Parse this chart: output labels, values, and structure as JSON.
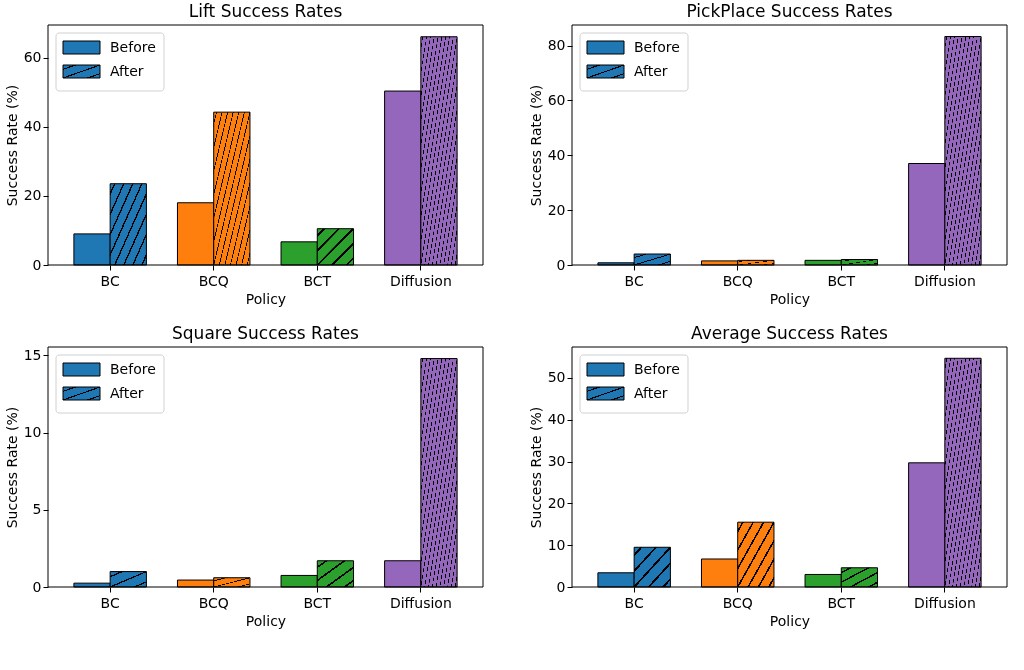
{
  "chart_data": [
    {
      "type": "bar",
      "title": "Lift Success Rates",
      "xlabel": "Policy",
      "ylabel": "Success Rate (%)",
      "categories": [
        "BC",
        "BCQ",
        "BCT",
        "Diffusion"
      ],
      "series": [
        {
          "name": "Before",
          "colors": [
            "#1f77b4",
            "#ff7f0e",
            "#2ca02c",
            "#9467bd"
          ],
          "values": [
            9.0,
            18.0,
            6.7,
            50.3
          ]
        },
        {
          "name": "After",
          "colors": [
            "#1f77b4",
            "#ff7f0e",
            "#2ca02c",
            "#9467bd"
          ],
          "values": [
            23.5,
            44.2,
            10.5,
            66.0
          ]
        }
      ],
      "ylim": [
        0,
        69.4
      ],
      "yticks": [
        0,
        20,
        40,
        60
      ],
      "legend": "top left",
      "grid": false
    },
    {
      "type": "bar",
      "title": "PickPlace Success Rates",
      "xlabel": "Policy",
      "ylabel": "Success Rate (%)",
      "categories": [
        "BC",
        "BCQ",
        "BCT",
        "Diffusion"
      ],
      "series": [
        {
          "name": "Before",
          "colors": [
            "#1f77b4",
            "#ff7f0e",
            "#2ca02c",
            "#9467bd"
          ],
          "values": [
            0.8,
            1.5,
            1.7,
            37.0
          ]
        },
        {
          "name": "After",
          "colors": [
            "#1f77b4",
            "#ff7f0e",
            "#2ca02c",
            "#9467bd"
          ],
          "values": [
            4.0,
            1.7,
            2.0,
            83.3
          ]
        }
      ],
      "ylim": [
        0,
        87.5
      ],
      "yticks": [
        0,
        20,
        40,
        60,
        80
      ],
      "legend": "top left",
      "grid": false
    },
    {
      "type": "bar",
      "title": "Square Success Rates",
      "xlabel": "Policy",
      "ylabel": "Success Rate (%)",
      "categories": [
        "BC",
        "BCQ",
        "BCT",
        "Diffusion"
      ],
      "series": [
        {
          "name": "Before",
          "colors": [
            "#1f77b4",
            "#ff7f0e",
            "#2ca02c",
            "#9467bd"
          ],
          "values": [
            0.25,
            0.45,
            0.75,
            1.7
          ]
        },
        {
          "name": "After",
          "colors": [
            "#1f77b4",
            "#ff7f0e",
            "#2ca02c",
            "#9467bd"
          ],
          "values": [
            1.0,
            0.6,
            1.7,
            14.8
          ]
        }
      ],
      "ylim": [
        0,
        15.55
      ],
      "yticks": [
        0,
        5,
        10,
        15
      ],
      "legend": "top left",
      "grid": false
    },
    {
      "type": "bar",
      "title": "Average Success Rates",
      "xlabel": "Policy",
      "ylabel": "Success Rate (%)",
      "categories": [
        "BC",
        "BCQ",
        "BCT",
        "Diffusion"
      ],
      "series": [
        {
          "name": "Before",
          "colors": [
            "#1f77b4",
            "#ff7f0e",
            "#2ca02c",
            "#9467bd"
          ],
          "values": [
            3.4,
            6.7,
            3.0,
            29.7
          ]
        },
        {
          "name": "After",
          "colors": [
            "#1f77b4",
            "#ff7f0e",
            "#2ca02c",
            "#9467bd"
          ],
          "values": [
            9.5,
            15.5,
            4.6,
            54.7
          ]
        }
      ],
      "ylim": [
        0,
        57.4
      ],
      "yticks": [
        0,
        10,
        20,
        30,
        40,
        50
      ],
      "legend": "top left",
      "grid": false
    }
  ]
}
